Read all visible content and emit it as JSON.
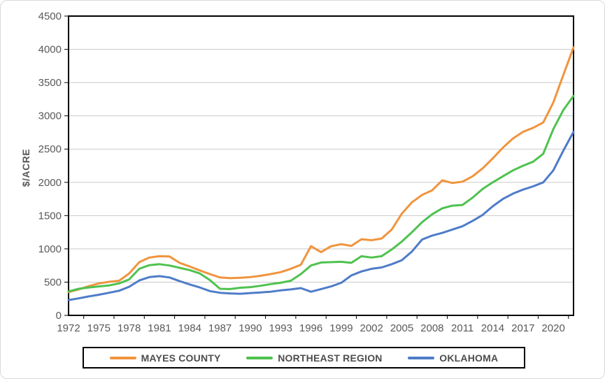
{
  "chart_data": {
    "type": "line",
    "title": "",
    "ylabel": "$/ACRE",
    "xlabel": "",
    "ylim": [
      0,
      4500
    ],
    "y_ticks": [
      0,
      500,
      1000,
      1500,
      2000,
      2500,
      3000,
      3500,
      4000,
      4500
    ],
    "x_range": [
      1972,
      2022
    ],
    "x_tick_years": [
      1972,
      1975,
      1978,
      1981,
      1984,
      1987,
      1990,
      1993,
      1996,
      1999,
      2002,
      2005,
      2008,
      2011,
      2014,
      2017,
      2020
    ],
    "grid": "horizontal-only",
    "legend_position": "bottom",
    "years": [
      1972,
      1973,
      1974,
      1975,
      1976,
      1977,
      1978,
      1979,
      1980,
      1981,
      1982,
      1983,
      1984,
      1985,
      1986,
      1987,
      1988,
      1989,
      1990,
      1991,
      1992,
      1993,
      1994,
      1995,
      1996,
      1997,
      1998,
      1999,
      2000,
      2001,
      2002,
      2003,
      2004,
      2005,
      2006,
      2007,
      2008,
      2009,
      2010,
      2011,
      2012,
      2013,
      2014,
      2015,
      2016,
      2017,
      2018,
      2019,
      2020,
      2021,
      2022
    ],
    "series": [
      {
        "id": "mayes-county",
        "name": "MAYES COUNTY",
        "color": "#F0943E",
        "values": [
          350,
          390,
          440,
          480,
          505,
          520,
          630,
          800,
          870,
          890,
          885,
          790,
          735,
          675,
          620,
          570,
          560,
          565,
          575,
          595,
          620,
          650,
          700,
          760,
          1040,
          950,
          1040,
          1070,
          1045,
          1145,
          1130,
          1155,
          1290,
          1530,
          1700,
          1810,
          1880,
          2030,
          1990,
          2010,
          2090,
          2210,
          2360,
          2520,
          2660,
          2760,
          2820,
          2900,
          3200,
          3620,
          4030
        ]
      },
      {
        "id": "northeast-region",
        "name": "NORTHEAST REGION",
        "color": "#4FC24F",
        "values": [
          360,
          400,
          420,
          435,
          450,
          480,
          540,
          700,
          755,
          770,
          750,
          715,
          680,
          630,
          530,
          400,
          395,
          415,
          425,
          445,
          470,
          490,
          520,
          620,
          750,
          795,
          800,
          805,
          790,
          890,
          870,
          890,
          990,
          1110,
          1250,
          1400,
          1520,
          1610,
          1650,
          1660,
          1770,
          1900,
          2000,
          2090,
          2180,
          2250,
          2310,
          2430,
          2800,
          3090,
          3300
        ]
      },
      {
        "id": "oklahoma",
        "name": "OKLAHOMA",
        "color": "#4E7CC8",
        "values": [
          230,
          255,
          285,
          310,
          340,
          370,
          430,
          525,
          575,
          590,
          570,
          515,
          465,
          420,
          365,
          340,
          330,
          325,
          335,
          345,
          355,
          375,
          390,
          410,
          355,
          395,
          435,
          490,
          600,
          660,
          700,
          720,
          770,
          830,
          960,
          1140,
          1200,
          1240,
          1290,
          1340,
          1420,
          1510,
          1640,
          1750,
          1830,
          1890,
          1940,
          2000,
          2180,
          2480,
          2760
        ]
      }
    ],
    "colors": {
      "gridline": "#C9C9C9",
      "axis": "#000000",
      "tick_text": "#595959"
    }
  }
}
